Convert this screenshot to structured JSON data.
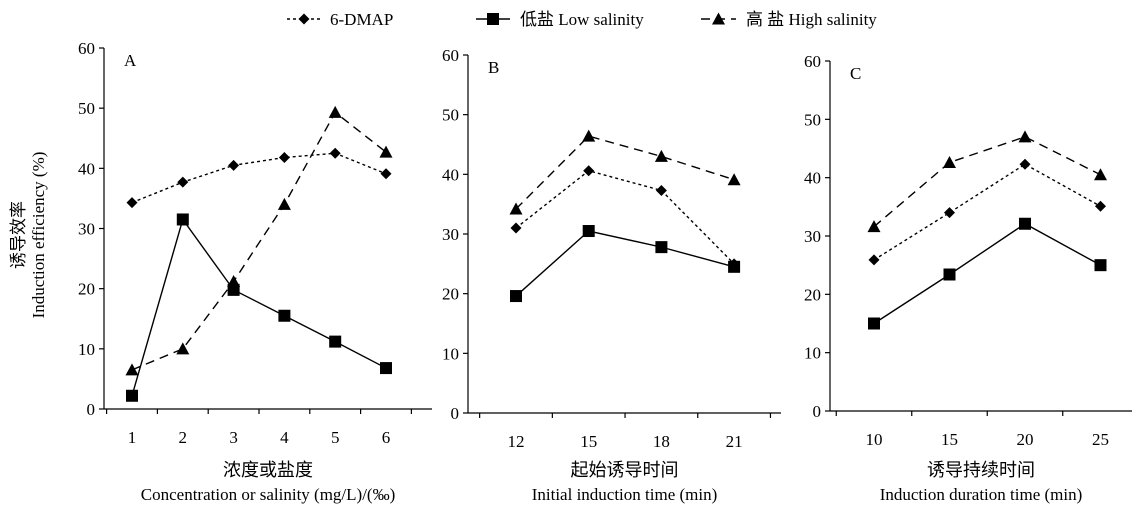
{
  "legend": {
    "items": [
      {
        "label": "6-DMAP",
        "marker": "diamond",
        "dash": "3,3"
      },
      {
        "label": "低盐 Low salinity",
        "marker": "square",
        "dash": ""
      },
      {
        "label": "高  盐 High salinity",
        "marker": "triangle",
        "dash": "9,6"
      }
    ]
  },
  "shared_ylabel": {
    "cn": "诱导效率",
    "en": "Induction efficiency (%)"
  },
  "chart_data": [
    {
      "type": "line",
      "panel_label": "A",
      "categories": [
        "1",
        "2",
        "3",
        "4",
        "5",
        "6"
      ],
      "ylim": [
        0,
        60
      ],
      "yticks": [
        0,
        10,
        20,
        30,
        40,
        50,
        60
      ],
      "xlabel_cn": "浓度或盐度",
      "xlabel_en": "Concentration or salinity (mg/L)/(‰)",
      "series": [
        {
          "name": "6-DMAP",
          "values": [
            34.3,
            37.7,
            40.5,
            41.8,
            42.5,
            39.1
          ]
        },
        {
          "name": "低盐 Low salinity",
          "values": [
            2.2,
            31.5,
            19.8,
            15.5,
            11.2,
            6.8
          ]
        },
        {
          "name": "高  盐 High salinity",
          "values": [
            6.5,
            10.0,
            21.2,
            34.0,
            49.3,
            42.7
          ]
        }
      ]
    },
    {
      "type": "line",
      "panel_label": "B",
      "categories": [
        "12",
        "15",
        "18",
        "21"
      ],
      "ylim": [
        0,
        60
      ],
      "yticks": [
        0,
        10,
        20,
        30,
        40,
        50,
        60
      ],
      "xlabel_cn": "起始诱导时间",
      "xlabel_en": "Initial induction time (min)",
      "series": [
        {
          "name": "6-DMAP",
          "values": [
            31.0,
            40.6,
            37.3,
            25.0
          ]
        },
        {
          "name": "低盐 Low salinity",
          "values": [
            19.6,
            30.5,
            27.8,
            24.5
          ]
        },
        {
          "name": "高  盐 High salinity",
          "values": [
            34.2,
            46.4,
            43.0,
            39.1
          ]
        }
      ]
    },
    {
      "type": "line",
      "panel_label": "C",
      "categories": [
        "10",
        "15",
        "20",
        "25"
      ],
      "ylim": [
        0,
        60
      ],
      "yticks": [
        0,
        10,
        20,
        30,
        40,
        50,
        60
      ],
      "xlabel_cn": "诱导持续时间",
      "xlabel_en": "Induction duration time (min)",
      "series": [
        {
          "name": "6-DMAP",
          "values": [
            25.9,
            34.0,
            42.3,
            35.1
          ]
        },
        {
          "name": "低盐 Low salinity",
          "values": [
            15.0,
            23.4,
            32.1,
            25.0
          ]
        },
        {
          "name": "高  盐 High salinity",
          "values": [
            31.6,
            42.6,
            47.0,
            40.5
          ]
        }
      ]
    }
  ]
}
